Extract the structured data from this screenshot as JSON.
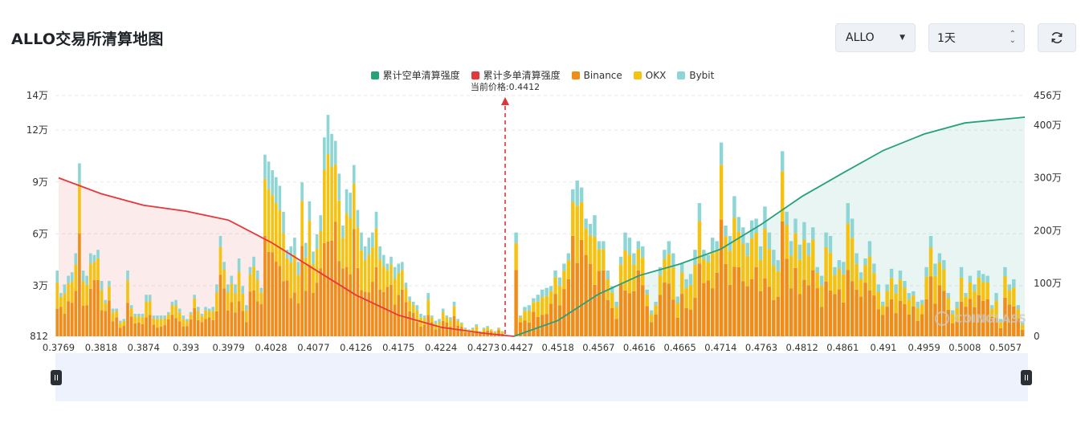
{
  "header": {
    "title": "ALLO交易所清算地图"
  },
  "controls": {
    "symbol": "ALLO",
    "range": "1天"
  },
  "legend": [
    {
      "label": "累计空单清算强度",
      "color": "#26a17b"
    },
    {
      "label": "累计多单清算强度",
      "color": "#e5383b"
    },
    {
      "label": "Binance",
      "color": "#f08c18"
    },
    {
      "label": "OKX",
      "color": "#f5c211"
    },
    {
      "label": "Bybit",
      "color": "#8ed5d5"
    }
  ],
  "current_price_label": "当前价格:0.4412",
  "watermark": "COINGLASS",
  "chart_data": {
    "type": "bar",
    "current_price": 0.4412,
    "x_ticks": [
      "0.3769",
      "0.3818",
      "0.3874",
      "0.393",
      "0.3979",
      "0.4028",
      "0.4077",
      "0.4126",
      "0.4175",
      "0.4224",
      "0.4273",
      "0.4427",
      "0.4518",
      "0.4567",
      "0.4616",
      "0.4665",
      "0.4714",
      "0.4763",
      "0.4812",
      "0.4861",
      "0.491",
      "0.4959",
      "0.5008",
      "0.5057"
    ],
    "y_left_ticks": [
      "812",
      "3万",
      "6万",
      "9万",
      "12万",
      "14万"
    ],
    "y_left_range": [
      812,
      140000
    ],
    "y_right_ticks": [
      "0",
      "100万",
      "200万",
      "300万",
      "400万",
      "456万"
    ],
    "y_right_range": [
      0,
      4560000
    ],
    "bars_left_totals": [
      38000,
      25000,
      30000,
      35000,
      37000,
      48000,
      100000,
      38000,
      35000,
      48000,
      47000,
      50000,
      32000,
      21000,
      32000,
      16000,
      16000,
      9000,
      10000,
      38000,
      18000,
      13000,
      13000,
      13000,
      24000,
      24000,
      12000,
      12000,
      12000,
      12000,
      14000,
      20000,
      21000,
      16000,
      12000,
      10000,
      14000,
      24000,
      17000,
      13000,
      17000,
      16000,
      17000,
      30000,
      58000,
      43000,
      30000,
      35000,
      30000,
      45000,
      29000,
      18000,
      40000,
      46000,
      38000,
      28000,
      105000,
      101000,
      96000,
      92000,
      87000,
      72000,
      50000,
      52000,
      57000,
      43000,
      89000,
      54000,
      78000,
      49000,
      59000,
      70000,
      115000,
      128000,
      117000,
      113000,
      94000,
      64000,
      85000,
      83000,
      99000,
      73000,
      60000,
      52000,
      57000,
      60000,
      72000,
      52000,
      47000,
      42000,
      46000,
      40000,
      42000,
      43000,
      31000,
      23000,
      20000,
      18000,
      13000,
      12000,
      25000,
      12000,
      9000,
      10000,
      16000,
      12000,
      11000,
      20000,
      10000,
      8000,
      5000,
      4000,
      5000,
      7000,
      3000,
      5000,
      6000,
      4000,
      3000,
      5000,
      3000
    ],
    "bars_right_totals": [
      60000,
      12000,
      17000,
      18000,
      22000,
      24000,
      27000,
      28000,
      29000,
      38000,
      34000,
      42000,
      48000,
      85000,
      90000,
      86000,
      68000,
      65000,
      70000,
      55000,
      55000,
      38000,
      29000,
      20000,
      46000,
      60000,
      57000,
      48000,
      55000,
      52000,
      27000,
      15000,
      20000,
      40000,
      50000,
      55000,
      48000,
      23000,
      42000,
      33000,
      36000,
      50000,
      77000,
      50000,
      47000,
      57000,
      55000,
      112000,
      64000,
      58000,
      81000,
      69000,
      63000,
      54000,
      67000,
      68000,
      52000,
      75000,
      60000,
      50000,
      44000,
      107000,
      72000,
      55000,
      68000,
      53000,
      66000,
      54000,
      63000,
      40000,
      35000,
      60000,
      58000,
      40000,
      44000,
      43000,
      77000,
      68000,
      48000,
      37000,
      45000,
      55000,
      42000,
      30000,
      20000,
      30000,
      39000,
      30000,
      38000,
      32000,
      25000,
      26000,
      20000,
      21000,
      40000,
      58000,
      42000,
      48000,
      44000,
      25000,
      15000,
      20000,
      40000,
      25000,
      35000,
      30000,
      38000,
      36000,
      35000,
      18000,
      25000,
      10000,
      40000,
      30000,
      33000,
      18000,
      8000
    ],
    "series": [
      {
        "name": "累计多单清算强度",
        "x": [
          0.3769,
          0.3818,
          0.3874,
          0.393,
          0.3979,
          0.4028,
          0.4077,
          0.4126,
          0.4175,
          0.4224,
          0.4273,
          0.4412
        ],
        "values": [
          3000000,
          2700000,
          2480000,
          2370000,
          2200000,
          1780000,
          1280000,
          780000,
          400000,
          170000,
          60000,
          0
        ]
      },
      {
        "name": "累计空单清算强度",
        "x": [
          0.4412,
          0.4518,
          0.4567,
          0.4616,
          0.4665,
          0.4714,
          0.4763,
          0.4812,
          0.4861,
          0.491,
          0.4959,
          0.5008,
          0.5057
        ],
        "values": [
          0,
          300000,
          800000,
          1150000,
          1370000,
          1650000,
          2120000,
          2650000,
          3090000,
          3520000,
          3830000,
          4040000,
          4150000
        ]
      }
    ]
  }
}
